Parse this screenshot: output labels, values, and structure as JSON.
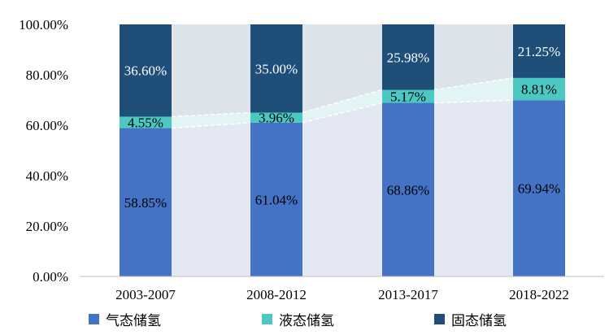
{
  "chart_data": {
    "type": "bar",
    "stacked": true,
    "normalized": true,
    "categories": [
      "2003-2007",
      "2008-2012",
      "2013-2017",
      "2018-2022"
    ],
    "series": [
      {
        "name": "气态储氢",
        "values": [
          58.85,
          61.04,
          68.86,
          69.94
        ],
        "labels": [
          "58.85%",
          "61.04%",
          "68.86%",
          "69.94%"
        ],
        "color": "#4472C4",
        "label_color": "#000000"
      },
      {
        "name": "液态储氢",
        "values": [
          4.55,
          3.96,
          5.17,
          8.81
        ],
        "labels": [
          "4.55%",
          "3.96%",
          "5.17%",
          "8.81%"
        ],
        "color": "#4BC8C2",
        "label_color": "#000000"
      },
      {
        "name": "固态储氢",
        "values": [
          36.6,
          35.0,
          25.98,
          21.25
        ],
        "labels": [
          "36.60%",
          "35.00%",
          "25.98%",
          "21.25%"
        ],
        "color": "#1F4E79",
        "label_color": "#ffffff"
      }
    ],
    "y_ticks": [
      "0.00%",
      "20.00%",
      "40.00%",
      "60.00%",
      "80.00%",
      "100.00%"
    ],
    "ylim": [
      0,
      100
    ],
    "legend_position": "bottom-left",
    "connector_fills": [
      "#E3E8F3",
      "#E3F4F5",
      "#DDE3EB"
    ]
  }
}
